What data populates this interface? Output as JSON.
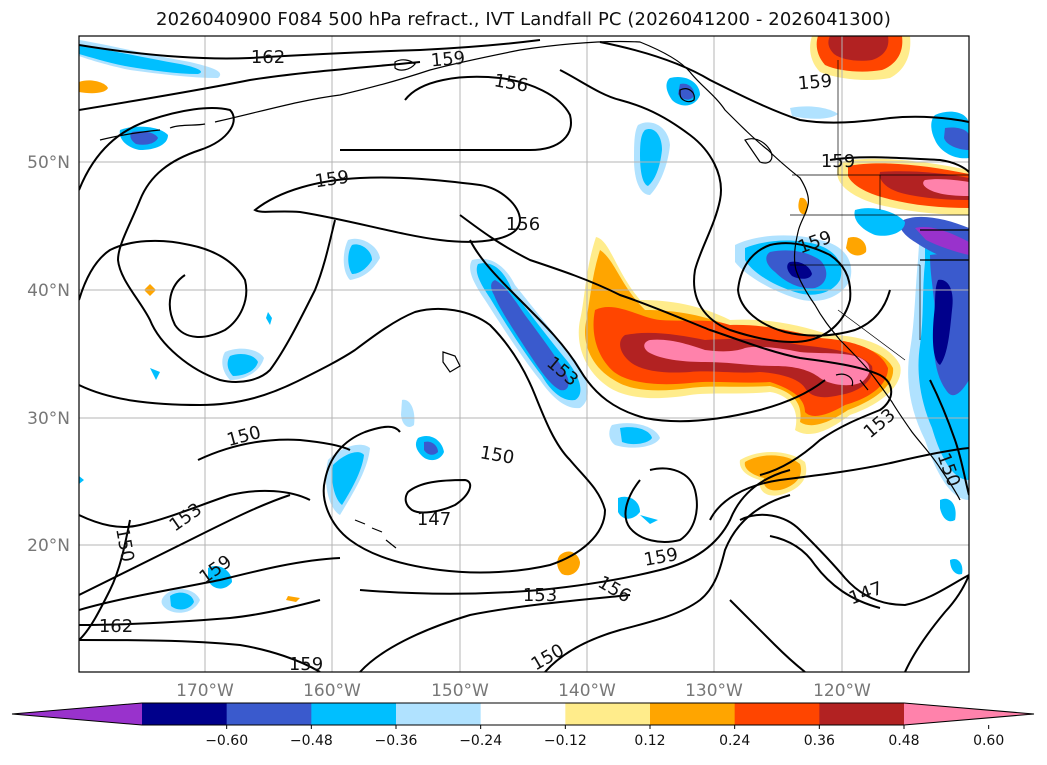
{
  "title": "2026040900 F084 500 hPa refract., IVT Landfall PC (2026041200 - 2026041300)",
  "map": {
    "lat_ticks": [
      "50°N",
      "40°N",
      "30°N",
      "20°N"
    ],
    "lon_ticks": [
      "170°W",
      "160°W",
      "150°W",
      "140°W",
      "130°W",
      "120°W"
    ],
    "contour_labels": [
      {
        "text": "162",
        "rot": 0
      },
      {
        "text": "159",
        "rot": -5
      },
      {
        "text": "156",
        "rot": 10
      },
      {
        "text": "159",
        "rot": -5
      },
      {
        "text": "159",
        "rot": 0
      },
      {
        "text": "159",
        "rot": -8
      },
      {
        "text": "156",
        "rot": 0
      },
      {
        "text": "159",
        "rot": -20
      },
      {
        "text": "153",
        "rot": 40
      },
      {
        "text": "150",
        "rot": -15
      },
      {
        "text": "150",
        "rot": 10
      },
      {
        "text": "147",
        "rot": 0
      },
      {
        "text": "153",
        "rot": -35
      },
      {
        "text": "150",
        "rot": 80
      },
      {
        "text": "159",
        "rot": -35
      },
      {
        "text": "162",
        "rot": 0
      },
      {
        "text": "153",
        "rot": 0
      },
      {
        "text": "156",
        "rot": 30
      },
      {
        "text": "159",
        "rot": -10
      },
      {
        "text": "159",
        "rot": 0
      },
      {
        "text": "150",
        "rot": -30
      },
      {
        "text": "147",
        "rot": -20
      },
      {
        "text": "153",
        "rot": -40
      },
      {
        "text": "150",
        "rot": 70
      }
    ]
  },
  "colorbar": {
    "ticks": [
      "−0.60",
      "−0.48",
      "−0.36",
      "−0.24",
      "−0.12",
      "0.12",
      "0.24",
      "0.36",
      "0.48",
      "0.60"
    ],
    "colors": [
      "#9932cc",
      "#00008b",
      "#3a5acd",
      "#00bfff",
      "#b0e2ff",
      "#ffffff",
      "#ffec8b",
      "#ffa500",
      "#ff4500",
      "#b22222",
      "#ff82ab"
    ]
  },
  "palette": {
    "land_line": "#000000",
    "grid": "#aaaaaa",
    "contour": "#000000"
  }
}
